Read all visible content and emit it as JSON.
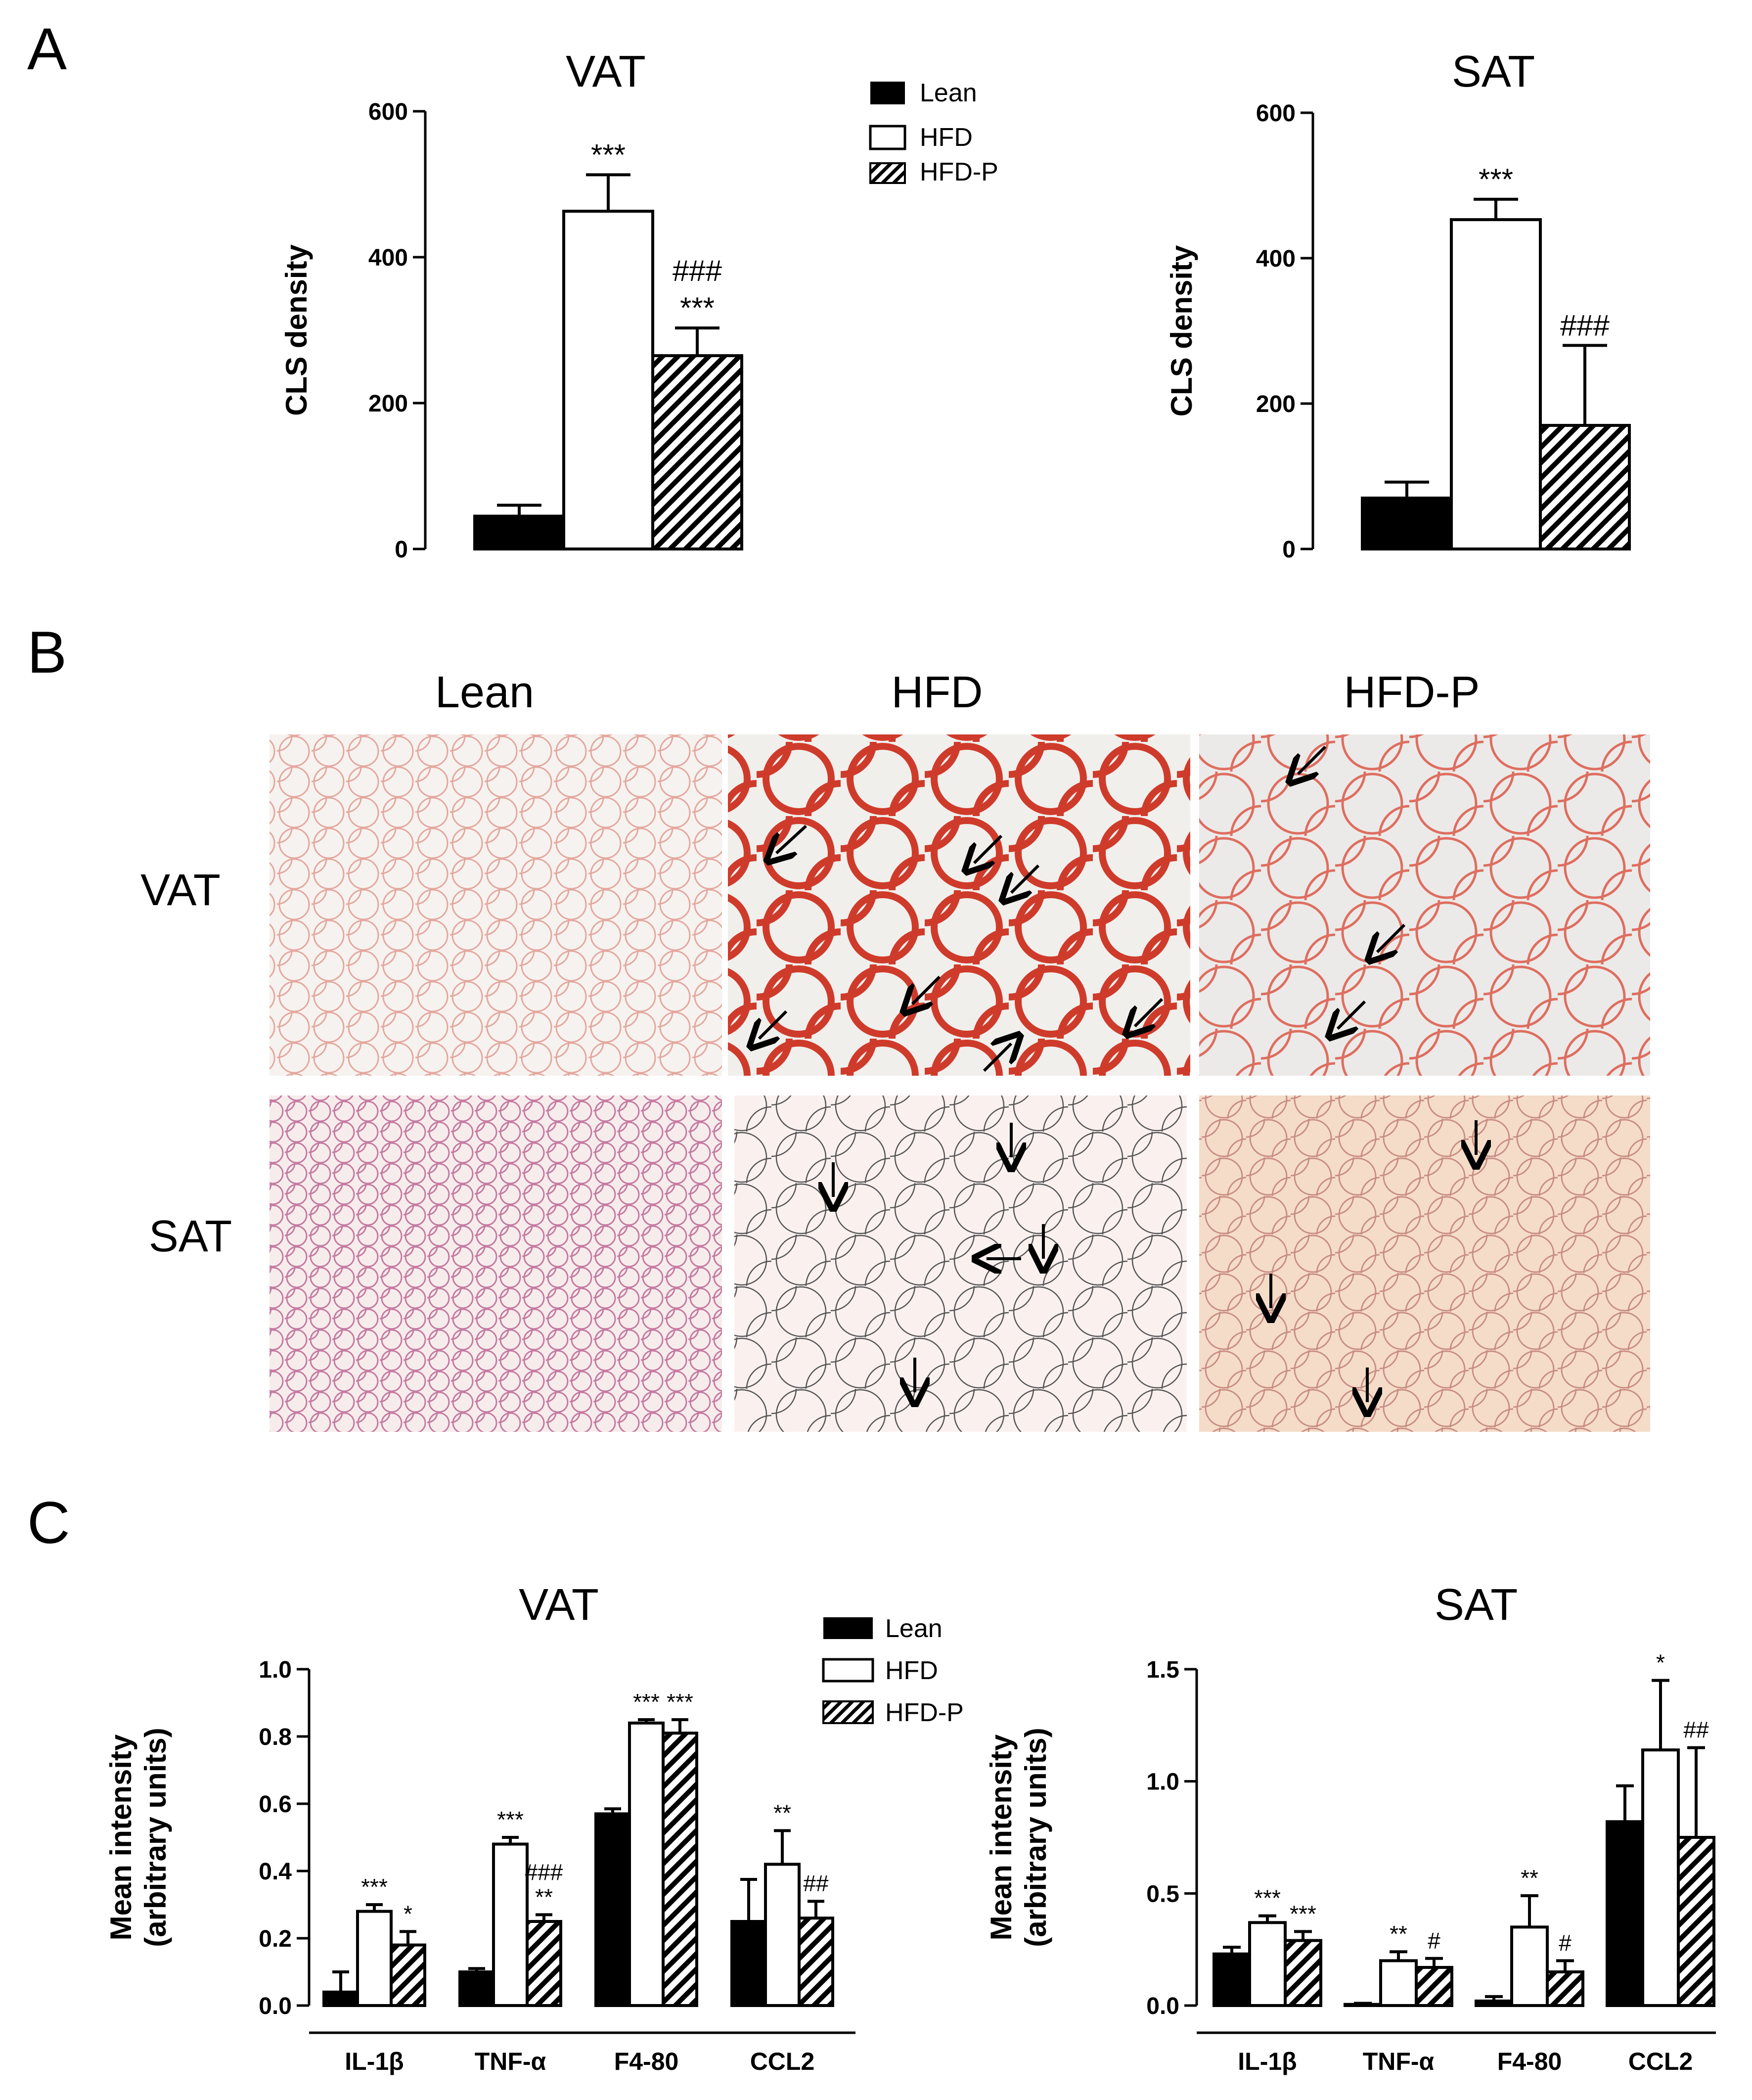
{
  "panels": {
    "a": "A",
    "b": "B",
    "c": "C"
  },
  "legend": [
    "Lean",
    "HFD",
    "HFD-P"
  ],
  "colors": {
    "lean": "#000000",
    "hfd": "#ffffff",
    "hfdp_hatch": "#000000"
  },
  "chart_data": [
    {
      "id": "A-VAT",
      "type": "bar",
      "title": "VAT",
      "xlabel": "",
      "ylabel": "CLS density",
      "ylim": [
        0,
        600
      ],
      "yticks": [
        "0",
        "200",
        "400",
        "600"
      ],
      "categories": [
        ""
      ],
      "series": [
        {
          "name": "Lean",
          "values": [
            45
          ],
          "errors": [
            15
          ],
          "annotation": [
            ""
          ]
        },
        {
          "name": "HFD",
          "values": [
            463
          ],
          "errors": [
            50
          ],
          "annotation": [
            "***"
          ]
        },
        {
          "name": "HFD-P",
          "values": [
            265
          ],
          "errors": [
            38
          ],
          "annotation": [
            "###\n***"
          ]
        }
      ]
    },
    {
      "id": "A-SAT",
      "type": "bar",
      "title": "SAT",
      "xlabel": "",
      "ylabel": "CLS density",
      "ylim": [
        0,
        600
      ],
      "yticks": [
        "0",
        "200",
        "400",
        "600"
      ],
      "categories": [
        ""
      ],
      "series": [
        {
          "name": "Lean",
          "values": [
            70
          ],
          "errors": [
            22
          ],
          "annotation": [
            ""
          ]
        },
        {
          "name": "HFD",
          "values": [
            453
          ],
          "errors": [
            28
          ],
          "annotation": [
            "***"
          ]
        },
        {
          "name": "HFD-P",
          "values": [
            170
          ],
          "errors": [
            110
          ],
          "annotation": [
            "###"
          ]
        }
      ]
    },
    {
      "id": "C-VAT",
      "type": "bar",
      "title": "VAT",
      "xlabel": "",
      "ylabel": "Mean intensity\n(arbitrary units)",
      "ylim": [
        0,
        1.0
      ],
      "yticks": [
        "0.0",
        "0.2",
        "0.4",
        "0.6",
        "0.8",
        "1.0"
      ],
      "categories": [
        "IL-1β",
        "TNF-α",
        "F4-80",
        "CCL2"
      ],
      "series": [
        {
          "name": "Lean",
          "values": [
            0.04,
            0.1,
            0.57,
            0.25
          ],
          "errors": [
            0.06,
            0.01,
            0.015,
            0.125
          ],
          "annotation": [
            "",
            "",
            "",
            ""
          ]
        },
        {
          "name": "HFD",
          "values": [
            0.28,
            0.48,
            0.84,
            0.42
          ],
          "errors": [
            0.02,
            0.02,
            0.01,
            0.1
          ],
          "annotation": [
            "***",
            "***",
            "***",
            "**"
          ]
        },
        {
          "name": "HFD-P",
          "values": [
            0.18,
            0.25,
            0.81,
            0.26
          ],
          "errors": [
            0.04,
            0.02,
            0.04,
            0.05
          ],
          "annotation": [
            "*",
            "###\n**",
            "***",
            "##"
          ]
        }
      ]
    },
    {
      "id": "C-SAT",
      "type": "bar",
      "title": "SAT",
      "xlabel": "",
      "ylabel": "Mean intensity\n(arbitrary units)",
      "ylim": [
        0,
        1.5
      ],
      "yticks": [
        "0.0",
        "0.5",
        "1.0",
        "1.5"
      ],
      "categories": [
        "IL-1β",
        "TNF-α",
        "F4-80",
        "CCL2"
      ],
      "series": [
        {
          "name": "Lean",
          "values": [
            0.23,
            0.005,
            0.02,
            0.82
          ],
          "errors": [
            0.03,
            0.005,
            0.02,
            0.16
          ],
          "annotation": [
            "",
            "",
            "",
            ""
          ]
        },
        {
          "name": "HFD",
          "values": [
            0.37,
            0.2,
            0.35,
            1.14
          ],
          "errors": [
            0.03,
            0.04,
            0.14,
            0.31
          ],
          "annotation": [
            "***",
            "**",
            "**",
            "*"
          ]
        },
        {
          "name": "HFD-P",
          "values": [
            0.29,
            0.17,
            0.15,
            0.75
          ],
          "errors": [
            0.04,
            0.04,
            0.05,
            0.4
          ],
          "annotation": [
            "***",
            "#",
            "#",
            "##"
          ]
        }
      ]
    }
  ],
  "micrographs": {
    "columns": [
      "Lean",
      "HFD",
      "HFD-P"
    ],
    "rows": [
      "VAT",
      "SAT"
    ]
  }
}
